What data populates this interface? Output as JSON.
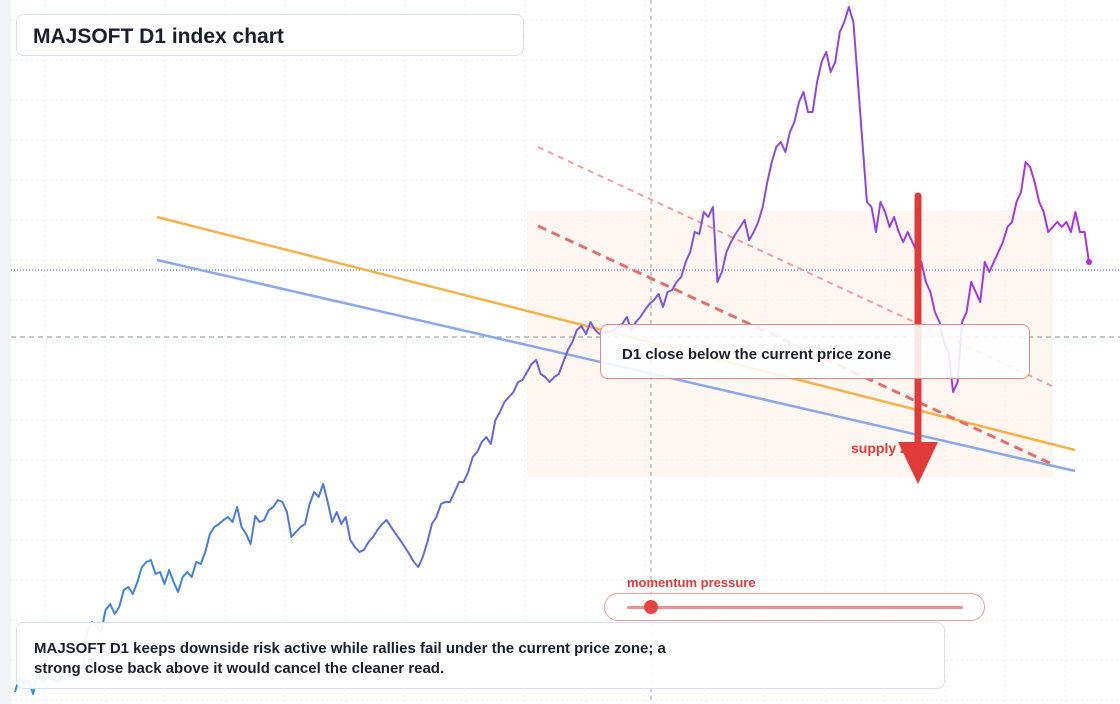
{
  "title": "MAJSOFT D1 index chart",
  "zone_label": "D1 close below the current price zone",
  "supply_label": "supply zone",
  "momentum_label": "momentum pressure",
  "note": "MAJSOFT D1 keeps downside risk active while rallies fail under the current price zone; a strong close back above it would cancel the cleaner read.",
  "colors": {
    "price_start": "#2e8fe0",
    "price_end": "#b02ee0",
    "accent_red": "#e03a3a",
    "orange_line": "#f5b24a",
    "blue_line": "#8aa7ef"
  },
  "momentum": {
    "level": 0.07
  },
  "chart_data": {
    "type": "line",
    "ylim": [
      0,
      700
    ],
    "current_price": 432,
    "price_zone_level": 365,
    "series": [
      {
        "values": [
          10,
          25,
          18,
          22,
          8,
          30,
          20,
          25,
          24,
          20,
          22,
          23,
          28,
          25,
          30,
          35,
          72,
          80,
          75,
          70,
          92,
          98,
          88,
          95,
          112,
          115,
          108,
          120,
          135,
          140,
          142,
          128,
          130,
          118,
          132,
          120,
          110,
          125,
          130,
          125,
          140,
          138,
          150,
          168,
          175,
          178,
          182,
          185,
          180,
          195,
          175,
          168,
          158,
          186,
          180,
          182,
          192,
          195,
          202,
          200,
          190,
          165,
          170,
          175,
          178,
          198,
          210,
          205,
          218,
          200,
          180,
          190,
          178,
          185,
          162,
          155,
          150,
          152,
          160,
          165,
          172,
          178,
          182,
          175,
          168,
          162,
          155,
          148,
          140,
          135,
          145,
          160,
          178,
          185,
          198,
          200,
          200,
          210,
          220,
          220,
          230,
          245,
          250,
          260,
          265,
          258,
          282,
          290,
          300,
          305,
          310,
          320,
          322,
          330,
          338,
          342,
          328,
          325,
          320,
          325,
          328,
          340,
          352,
          360,
          372,
          376,
          368,
          380,
          372,
          368,
          370,
          370,
          372,
          375,
          378,
          385,
          372,
          380,
          385,
          392,
          398,
          402,
          408,
          395,
          410,
          412,
          420,
          425,
          440,
          450,
          470,
          468,
          490,
          485,
          495,
          420,
          430,
          450,
          460,
          468,
          475,
          482,
          462,
          470,
          480,
          495,
          520,
          540,
          555,
          560,
          550,
          570,
          580,
          600,
          610,
          590,
          590,
          620,
          640,
          650,
          630,
          640,
          670,
          680,
          695,
          680,
          620,
          560,
          500,
          495,
          470,
          500,
          490,
          475,
          485,
          470,
          460,
          470,
          460,
          450,
          440,
          420,
          410,
          390,
          380,
          360,
          350,
          310,
          320,
          380,
          390,
          420,
          410,
          400,
          440,
          430,
          440,
          450,
          460,
          475,
          480,
          500,
          510,
          540,
          535,
          520,
          500,
          490,
          470,
          475,
          480,
          475,
          480,
          470,
          490,
          470,
          470,
          440
        ]
      }
    ]
  }
}
